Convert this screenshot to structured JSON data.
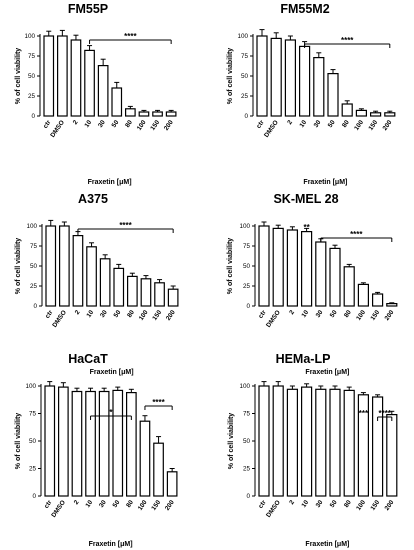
{
  "chart_data": [
    {
      "type": "bar",
      "title": "FM55P",
      "xlabel": "Fraxetin [μM]",
      "ylabel": "% of cell viability",
      "ylim": [
        0,
        100
      ],
      "yticks": [
        "0",
        "25",
        "50",
        "75",
        "100"
      ],
      "categories": [
        "ctr",
        "DMSO",
        "2",
        "10",
        "30",
        "50",
        "80",
        "100",
        "150",
        "200"
      ],
      "values": [
        100,
        100,
        95,
        82,
        63,
        35,
        9,
        5,
        5,
        5
      ],
      "errors": [
        6,
        7,
        6,
        6,
        8,
        7,
        3,
        2,
        2,
        2
      ],
      "significance": [
        {
          "label": "****",
          "from": "10",
          "to": "200"
        }
      ]
    },
    {
      "type": "bar",
      "title": "FM55M2",
      "xlabel": "Fraxetin [μM]",
      "ylabel": "% of cell viability",
      "ylim": [
        0,
        100
      ],
      "yticks": [
        "0",
        "25",
        "50",
        "75",
        "100"
      ],
      "categories": [
        "ctr",
        "DMSO",
        "2",
        "10",
        "30",
        "50",
        "80",
        "100",
        "150",
        "200"
      ],
      "values": [
        100,
        97,
        95,
        87,
        73,
        53,
        15,
        7,
        4,
        4
      ],
      "errors": [
        8,
        7,
        5,
        6,
        6,
        5,
        4,
        2,
        2,
        2
      ],
      "significance": [
        {
          "label": "****",
          "from": "10",
          "to": "200"
        }
      ]
    },
    {
      "type": "bar",
      "title": "A375",
      "xlabel": "Fraxetin [μM]",
      "ylabel": "% of cell viability",
      "ylim": [
        0,
        100
      ],
      "yticks": [
        "0",
        "25",
        "50",
        "75",
        "100"
      ],
      "categories": [
        "ctr",
        "DMSO",
        "2",
        "10",
        "30",
        "50",
        "80",
        "100",
        "150",
        "200"
      ],
      "values": [
        100,
        100,
        88,
        74,
        59,
        47,
        37,
        34,
        29,
        21
      ],
      "errors": [
        7,
        5,
        5,
        5,
        5,
        5,
        4,
        4,
        4,
        4
      ],
      "significance": [
        {
          "label": "****",
          "from": "2",
          "to": "200"
        }
      ]
    },
    {
      "type": "bar",
      "title": "SK-MEL 28",
      "xlabel": "Fraxetin [μM]",
      "ylabel": "% of cell viability",
      "ylim": [
        0,
        100
      ],
      "yticks": [
        "0",
        "25",
        "50",
        "75",
        "100"
      ],
      "categories": [
        "ctr",
        "DMSO",
        "2",
        "10",
        "30",
        "50",
        "80",
        "100",
        "150",
        "200"
      ],
      "values": [
        100,
        97,
        95,
        93,
        80,
        72,
        49,
        27,
        15,
        3
      ],
      "errors": [
        5,
        4,
        4,
        4,
        4,
        4,
        3,
        2,
        2,
        1
      ],
      "significance": [
        {
          "label": "**",
          "from": "10",
          "to": "10"
        },
        {
          "label": "****",
          "from": "30",
          "to": "200"
        }
      ]
    },
    {
      "type": "bar",
      "title": "HaCaT",
      "xlabel": "Fraxetin [μM]",
      "ylabel": "% of cell viability",
      "ylim": [
        0,
        100
      ],
      "yticks": [
        "0",
        "25",
        "50",
        "75",
        "100"
      ],
      "categories": [
        "ctr",
        "DMSO",
        "2",
        "10",
        "30",
        "50",
        "80",
        "100",
        "150",
        "200"
      ],
      "values": [
        100,
        99,
        95,
        95,
        95,
        96,
        94,
        68,
        48,
        22
      ],
      "errors": [
        4,
        4,
        3,
        3,
        3,
        3,
        3,
        5,
        6,
        3
      ],
      "significance": [
        {
          "label": "*",
          "from": "10",
          "to": "80"
        },
        {
          "label": "****",
          "from": "100",
          "to": "200"
        }
      ]
    },
    {
      "type": "bar",
      "title": "HEMa-LP",
      "xlabel": "Fraxetin [μM]",
      "ylabel": "% of cell viability",
      "ylim": [
        0,
        100
      ],
      "yticks": [
        "0",
        "25",
        "50",
        "75",
        "100"
      ],
      "categories": [
        "ctr",
        "DMSO",
        "2",
        "10",
        "30",
        "50",
        "80",
        "100",
        "150",
        "200"
      ],
      "values": [
        100,
        100,
        97,
        99,
        97,
        97,
        96,
        92,
        90,
        74
      ],
      "errors": [
        4,
        4,
        3,
        3,
        3,
        3,
        3,
        2,
        2,
        3
      ],
      "significance": [
        {
          "label": "***",
          "from": "100",
          "to": "100"
        },
        {
          "label": "****",
          "from": "150",
          "to": "200"
        }
      ]
    }
  ]
}
